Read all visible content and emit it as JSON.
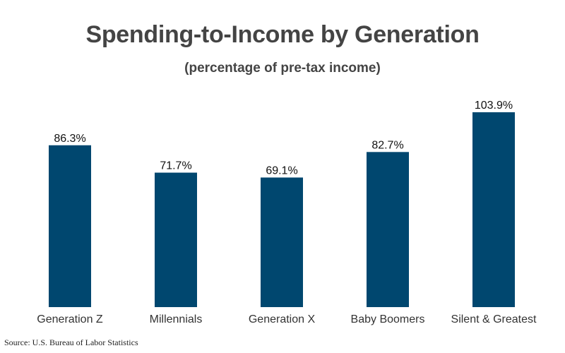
{
  "header": {
    "title": "Spending-to-Income by Generation",
    "subtitle": "(percentage of pre-tax income)"
  },
  "footer": {
    "source": "Source: U.S. Bureau of Labor Statistics"
  },
  "chart_data": {
    "type": "bar",
    "title": "Spending-to-Income by Generation",
    "subtitle": "(percentage of pre-tax income)",
    "categories": [
      "Generation Z",
      "Millennials",
      "Generation X",
      "Baby Boomers",
      "Silent & Greatest"
    ],
    "values": [
      86.3,
      71.7,
      69.1,
      82.7,
      103.9
    ],
    "value_labels": [
      "86.3%",
      "71.7%",
      "69.1%",
      "82.7%",
      "103.9%"
    ],
    "ylim": [
      0,
      103.9
    ],
    "grid": false,
    "legend": "none",
    "bar_color": "#00476f",
    "label_color": "#111111",
    "category_color": "#333333"
  }
}
